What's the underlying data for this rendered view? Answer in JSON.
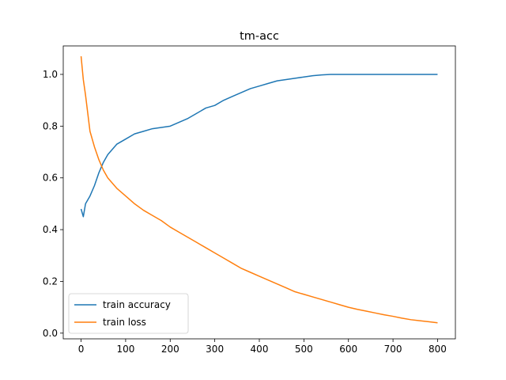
{
  "chart_data": {
    "type": "line",
    "title": "tm-acc",
    "xlabel": "",
    "ylabel": "",
    "xlim": [
      -40,
      840
    ],
    "ylim": [
      -0.022,
      1.11
    ],
    "xticks": [
      0,
      100,
      200,
      300,
      400,
      500,
      600,
      700,
      800
    ],
    "xtick_labels": [
      "0",
      "100",
      "200",
      "300",
      "400",
      "500",
      "600",
      "700",
      "800"
    ],
    "yticks": [
      0.0,
      0.2,
      0.4,
      0.6,
      0.8,
      1.0
    ],
    "ytick_labels": [
      "0.0",
      "0.2",
      "0.4",
      "0.6",
      "0.8",
      "1.0"
    ],
    "grid": false,
    "legend_position": "lower-left",
    "series": [
      {
        "name": "train accuracy",
        "color": "#1f77b4",
        "x": [
          0,
          5,
          10,
          20,
          30,
          40,
          50,
          60,
          70,
          80,
          90,
          100,
          120,
          140,
          160,
          180,
          200,
          220,
          240,
          260,
          280,
          300,
          320,
          340,
          360,
          380,
          400,
          420,
          440,
          460,
          480,
          500,
          520,
          540,
          560,
          600,
          650,
          700,
          750,
          800
        ],
        "y": [
          0.48,
          0.45,
          0.5,
          0.53,
          0.57,
          0.62,
          0.66,
          0.69,
          0.71,
          0.73,
          0.74,
          0.75,
          0.77,
          0.78,
          0.79,
          0.795,
          0.8,
          0.815,
          0.83,
          0.85,
          0.87,
          0.88,
          0.9,
          0.915,
          0.93,
          0.945,
          0.955,
          0.965,
          0.975,
          0.98,
          0.985,
          0.99,
          0.995,
          0.998,
          1.0,
          1.0,
          1.0,
          1.0,
          1.0,
          1.0
        ]
      },
      {
        "name": "train loss",
        "color": "#ff7f0e",
        "x": [
          0,
          5,
          10,
          15,
          20,
          30,
          40,
          50,
          60,
          80,
          100,
          120,
          140,
          160,
          180,
          200,
          220,
          240,
          260,
          280,
          300,
          320,
          340,
          360,
          380,
          400,
          420,
          440,
          460,
          480,
          500,
          520,
          540,
          560,
          580,
          600,
          620,
          640,
          660,
          680,
          700,
          720,
          740,
          760,
          780,
          800
        ],
        "y": [
          1.07,
          0.98,
          0.92,
          0.85,
          0.78,
          0.72,
          0.67,
          0.63,
          0.6,
          0.56,
          0.53,
          0.5,
          0.475,
          0.455,
          0.435,
          0.41,
          0.39,
          0.37,
          0.35,
          0.33,
          0.31,
          0.29,
          0.27,
          0.25,
          0.235,
          0.22,
          0.205,
          0.19,
          0.175,
          0.16,
          0.15,
          0.14,
          0.13,
          0.12,
          0.11,
          0.1,
          0.092,
          0.085,
          0.078,
          0.071,
          0.065,
          0.058,
          0.052,
          0.048,
          0.044,
          0.04
        ]
      }
    ]
  }
}
